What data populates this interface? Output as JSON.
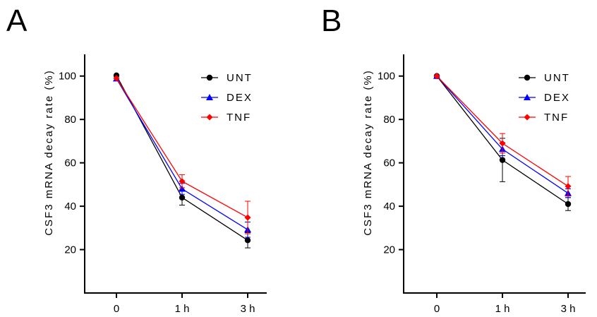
{
  "panels": [
    {
      "label": "A"
    },
    {
      "label": "B"
    }
  ],
  "chart_data": [
    {
      "type": "line",
      "title": "",
      "ylabel": "CSF3 mRNA decay rate (%)",
      "xlabel": "",
      "categories": [
        "0",
        "1 h",
        "3 h"
      ],
      "yticks": [
        20,
        40,
        60,
        80,
        100
      ],
      "ylim": [
        0,
        110
      ],
      "legend_position": "top-right",
      "series": [
        {
          "name": "UNT",
          "color": "#000000",
          "marker": "circle",
          "values": [
            100.3,
            44.0,
            24.3
          ],
          "errors": [
            0,
            3.5,
            3.5
          ]
        },
        {
          "name": "DEX",
          "color": "#0000ff",
          "marker": "triangle",
          "values": [
            98.8,
            48.0,
            29.2
          ],
          "errors": [
            0,
            2.5,
            3.5
          ]
        },
        {
          "name": "TNF",
          "color": "#ff0000",
          "marker": "diamond",
          "values": [
            99.0,
            51.5,
            34.8
          ],
          "errors": [
            0,
            3.0,
            7.5
          ]
        }
      ]
    },
    {
      "type": "line",
      "title": "",
      "ylabel": "CSF3 mRNA decay rate (%)",
      "xlabel": "",
      "categories": [
        "0",
        "1 h",
        "3 h"
      ],
      "yticks": [
        20,
        40,
        60,
        80,
        100
      ],
      "ylim": [
        0,
        110
      ],
      "legend_position": "top-right",
      "series": [
        {
          "name": "UNT",
          "color": "#000000",
          "marker": "circle",
          "values": [
            100.0,
            61.3,
            41.0
          ],
          "errors": [
            0,
            10.0,
            3.0
          ]
        },
        {
          "name": "DEX",
          "color": "#0000ff",
          "marker": "triangle",
          "values": [
            100.0,
            66.3,
            46.0
          ],
          "errors": [
            0,
            3.0,
            2.0
          ]
        },
        {
          "name": "TNF",
          "color": "#ff0000",
          "marker": "diamond",
          "values": [
            100.0,
            69.0,
            49.2
          ],
          "errors": [
            0,
            4.5,
            4.5
          ]
        }
      ]
    }
  ]
}
